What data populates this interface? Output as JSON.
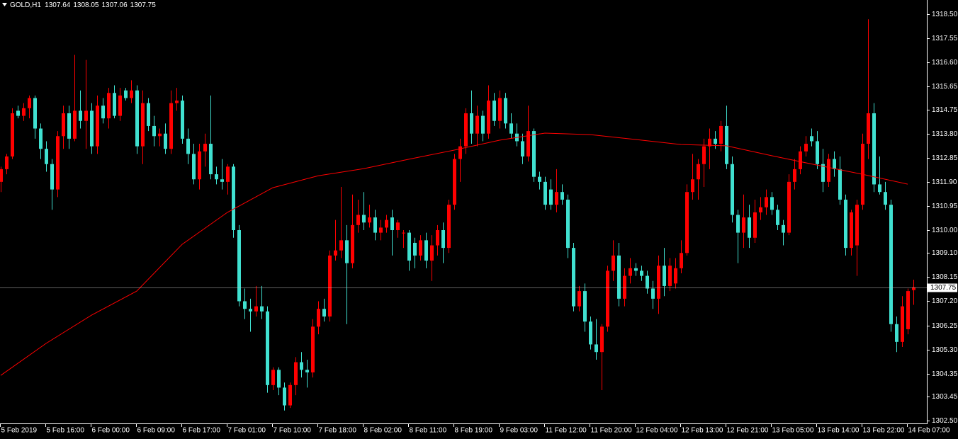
{
  "chart_data": {
    "type": "candlestick",
    "title": "GOLD,H1",
    "header_values": [
      1307.64,
      1308.05,
      1307.06,
      1307.75
    ],
    "up_color": "#ff0000",
    "down_color": "#40e0d0",
    "ylim": [
      1302.39,
      1319.06
    ],
    "yticks": [
      {
        "value": 1318.5,
        "label": "1318.50"
      },
      {
        "value": 1317.55,
        "label": "1317.55"
      },
      {
        "value": 1316.6,
        "label": "1316.60"
      },
      {
        "value": 1315.65,
        "label": "1315.65"
      },
      {
        "value": 1314.75,
        "label": "1314.75"
      },
      {
        "value": 1313.8,
        "label": "1313.80"
      },
      {
        "value": 1312.85,
        "label": "1312.85"
      },
      {
        "value": 1311.9,
        "label": "1311.90"
      },
      {
        "value": 1310.95,
        "label": "1310.95"
      },
      {
        "value": 1310,
        "label": "1310.00"
      },
      {
        "value": 1309.1,
        "label": "1309.10"
      },
      {
        "value": 1308.15,
        "label": "1308.15"
      },
      {
        "value": 1307.2,
        "label": "1307.20"
      },
      {
        "value": 1306.25,
        "label": "1306.25"
      },
      {
        "value": 1305.3,
        "label": "1305.30"
      },
      {
        "value": 1304.35,
        "label": "1304.35"
      },
      {
        "value": 1303.45,
        "label": "1303.45"
      },
      {
        "value": 1302.5,
        "label": "1302.50"
      }
    ],
    "last_price": 1307.75,
    "categories": [
      "5 Feb 2019",
      null,
      null,
      null,
      null,
      null,
      null,
      null,
      "5 Feb 16:00",
      null,
      null,
      null,
      null,
      null,
      null,
      null,
      "6 Feb 00:00",
      null,
      null,
      null,
      null,
      null,
      null,
      null,
      "6 Feb 09:00",
      null,
      null,
      null,
      null,
      null,
      null,
      null,
      "6 Feb 17:00",
      null,
      null,
      null,
      null,
      null,
      null,
      null,
      "7 Feb 01:00",
      null,
      null,
      null,
      null,
      null,
      null,
      null,
      "7 Feb 10:00",
      null,
      null,
      null,
      null,
      null,
      null,
      null,
      "7 Feb 18:00",
      null,
      null,
      null,
      null,
      null,
      null,
      null,
      "8 Feb 02:00",
      null,
      null,
      null,
      null,
      null,
      null,
      null,
      "8 Feb 11:00",
      null,
      null,
      null,
      null,
      null,
      null,
      null,
      "8 Feb 19:00",
      null,
      null,
      null,
      null,
      null,
      null,
      null,
      "9 Feb 03:00",
      null,
      null,
      null,
      null,
      null,
      null,
      null,
      "11 Feb 12:00",
      null,
      null,
      null,
      null,
      null,
      null,
      null,
      "11 Feb 20:00",
      null,
      null,
      null,
      null,
      null,
      null,
      null,
      "12 Feb 04:00",
      null,
      null,
      null,
      null,
      null,
      null,
      null,
      "12 Feb 13:00",
      null,
      null,
      null,
      null,
      null,
      null,
      null,
      "12 Feb 21:00",
      null,
      null,
      null,
      null,
      null,
      null,
      null,
      "13 Feb 05:00",
      null,
      null,
      null,
      null,
      null,
      null,
      null,
      "13 Feb 14:00",
      null,
      null,
      null,
      null,
      null,
      null,
      null,
      "13 Feb 22:00",
      null,
      null,
      null,
      null,
      null,
      null,
      null,
      "14 Feb 07:00",
      null
    ],
    "candles": [
      [
        1311.9,
        1312.5,
        1311.5,
        1312.4
      ],
      [
        1312.4,
        1313.0,
        1312.2,
        1312.9
      ],
      [
        1312.9,
        1314.8,
        1312.8,
        1314.6
      ],
      [
        1314.7,
        1314.9,
        1314.4,
        1314.5
      ],
      [
        1314.5,
        1315.0,
        1314.3,
        1314.8
      ],
      [
        1314.8,
        1315.3,
        1314.4,
        1315.2
      ],
      [
        1315.2,
        1315.3,
        1313.6,
        1314.0
      ],
      [
        1314.0,
        1314.2,
        1312.8,
        1313.2
      ],
      [
        1313.2,
        1313.5,
        1312.3,
        1312.6
      ],
      [
        1312.6,
        1312.8,
        1310.8,
        1311.6
      ],
      [
        1311.6,
        1313.9,
        1311.3,
        1313.7
      ],
      [
        1313.7,
        1314.9,
        1313.2,
        1314.6
      ],
      [
        1314.6,
        1314.9,
        1313.2,
        1313.6
      ],
      [
        1313.6,
        1316.9,
        1313.5,
        1314.7
      ],
      [
        1314.7,
        1315.5,
        1314.0,
        1314.3
      ],
      [
        1314.3,
        1316.7,
        1313.2,
        1314.7
      ],
      [
        1314.7,
        1315.0,
        1313.0,
        1313.3
      ],
      [
        1313.3,
        1315.3,
        1313.0,
        1314.9
      ],
      [
        1314.9,
        1315.2,
        1314.2,
        1314.4
      ],
      [
        1314.4,
        1315.6,
        1314.0,
        1315.4
      ],
      [
        1315.4,
        1315.7,
        1314.4,
        1314.5
      ],
      [
        1314.5,
        1315.6,
        1314.3,
        1315.3
      ],
      [
        1315.5,
        1315.6,
        1315.1,
        1315.2
      ],
      [
        1315.2,
        1315.9,
        1315.0,
        1315.5
      ],
      [
        1315.5,
        1315.7,
        1313.0,
        1313.3
      ],
      [
        1313.3,
        1315.5,
        1312.6,
        1315.0
      ],
      [
        1315.0,
        1315.2,
        1313.9,
        1314.1
      ],
      [
        1314.1,
        1314.5,
        1313.3,
        1313.7
      ],
      [
        1313.7,
        1314.0,
        1313.3,
        1313.8
      ],
      [
        1313.8,
        1314.2,
        1313.0,
        1313.2
      ],
      [
        1313.2,
        1315.5,
        1313.0,
        1315.0
      ],
      [
        1315.0,
        1315.6,
        1314.7,
        1315.1
      ],
      [
        1315.1,
        1315.3,
        1313.4,
        1313.6
      ],
      [
        1313.6,
        1314.0,
        1312.6,
        1313.0
      ],
      [
        1313.0,
        1313.4,
        1311.8,
        1312.0
      ],
      [
        1312.0,
        1313.4,
        1311.6,
        1313.1
      ],
      [
        1313.1,
        1313.8,
        1312.5,
        1313.4
      ],
      [
        1313.4,
        1315.3,
        1312.0,
        1312.2
      ],
      [
        1312.2,
        1312.5,
        1311.8,
        1312.0
      ],
      [
        1312.0,
        1312.8,
        1311.6,
        1311.9
      ],
      [
        1311.9,
        1312.6,
        1311.4,
        1312.5
      ],
      [
        1312.5,
        1312.6,
        1309.7,
        1310.0
      ],
      [
        1310.0,
        1310.2,
        1307.0,
        1307.2
      ],
      [
        1307.2,
        1307.7,
        1306.5,
        1306.9
      ],
      [
        1306.9,
        1307.3,
        1306.0,
        1306.8
      ],
      [
        1306.8,
        1307.8,
        1306.6,
        1307.0
      ],
      [
        1307.0,
        1307.8,
        1306.5,
        1306.8
      ],
      [
        1306.8,
        1307.0,
        1303.6,
        1303.9
      ],
      [
        1303.9,
        1304.6,
        1303.7,
        1304.5
      ],
      [
        1304.5,
        1304.6,
        1303.5,
        1303.8
      ],
      [
        1303.8,
        1304.0,
        1302.9,
        1303.1
      ],
      [
        1303.1,
        1304.0,
        1303.0,
        1303.9
      ],
      [
        1303.9,
        1305.0,
        1303.5,
        1304.8
      ],
      [
        1304.8,
        1305.2,
        1304.2,
        1304.5
      ],
      [
        1304.5,
        1304.9,
        1303.8,
        1304.4
      ],
      [
        1304.4,
        1306.5,
        1304.2,
        1306.2
      ],
      [
        1306.2,
        1307.2,
        1305.9,
        1306.9
      ],
      [
        1306.9,
        1307.3,
        1306.4,
        1306.6
      ],
      [
        1306.6,
        1309.2,
        1306.4,
        1309.0
      ],
      [
        1309.0,
        1310.4,
        1308.8,
        1309.2
      ],
      [
        1309.2,
        1311.7,
        1308.9,
        1309.6
      ],
      [
        1309.6,
        1310.2,
        1306.3,
        1308.7
      ],
      [
        1308.7,
        1311.4,
        1308.5,
        1310.2
      ],
      [
        1310.2,
        1311.2,
        1309.9,
        1310.6
      ],
      [
        1310.6,
        1311.5,
        1310.0,
        1310.3
      ],
      [
        1310.3,
        1311.0,
        1310.1,
        1310.5
      ],
      [
        1310.5,
        1310.8,
        1309.6,
        1309.9
      ],
      [
        1309.9,
        1310.4,
        1309.6,
        1310.1
      ],
      [
        1310.1,
        1310.6,
        1309.9,
        1310.4
      ],
      [
        1310.5,
        1310.8,
        1309.0,
        1310.0
      ],
      [
        1310.0,
        1310.4,
        1309.7,
        1310.3
      ],
      [
        1309.9,
        1310.0,
        1309.3,
        1309.9
      ],
      [
        1309.9,
        1310.0,
        1308.4,
        1308.8
      ],
      [
        1309.5,
        1309.7,
        1308.5,
        1309.0
      ],
      [
        1309.0,
        1309.8,
        1308.8,
        1309.6
      ],
      [
        1309.6,
        1309.9,
        1308.5,
        1308.8
      ],
      [
        1308.8,
        1309.8,
        1308.0,
        1309.4
      ],
      [
        1309.4,
        1310.2,
        1309.0,
        1310.0
      ],
      [
        1310.0,
        1310.3,
        1308.7,
        1309.3
      ],
      [
        1309.3,
        1311.2,
        1309.1,
        1311.0
      ],
      [
        1311.0,
        1313.0,
        1310.8,
        1312.8
      ],
      [
        1312.8,
        1313.6,
        1311.9,
        1313.3
      ],
      [
        1313.3,
        1314.8,
        1313.0,
        1314.6
      ],
      [
        1314.6,
        1315.5,
        1313.4,
        1313.8
      ],
      [
        1313.8,
        1314.9,
        1313.3,
        1314.5
      ],
      [
        1314.5,
        1314.7,
        1313.5,
        1313.8
      ],
      [
        1313.8,
        1315.7,
        1313.6,
        1315.1
      ],
      [
        1315.1,
        1315.4,
        1314.1,
        1314.3
      ],
      [
        1314.3,
        1315.5,
        1314.0,
        1315.2
      ],
      [
        1315.2,
        1315.4,
        1314.0,
        1314.2
      ],
      [
        1314.2,
        1314.6,
        1313.6,
        1313.8
      ],
      [
        1313.8,
        1314.2,
        1313.3,
        1313.5
      ],
      [
        1313.5,
        1313.8,
        1312.6,
        1312.9
      ],
      [
        1312.9,
        1314.9,
        1312.7,
        1313.9
      ],
      [
        1313.9,
        1314.0,
        1311.9,
        1312.1
      ],
      [
        1312.1,
        1312.3,
        1311.6,
        1311.9
      ],
      [
        1311.9,
        1312.1,
        1310.8,
        1311.0
      ],
      [
        1311.6,
        1312.0,
        1310.8,
        1311.0
      ],
      [
        1311.0,
        1312.4,
        1310.7,
        1311.5
      ],
      [
        1311.5,
        1311.8,
        1311.0,
        1311.2
      ],
      [
        1311.2,
        1311.4,
        1308.9,
        1309.3
      ],
      [
        1309.3,
        1309.5,
        1306.8,
        1307.0
      ],
      [
        1307.0,
        1307.8,
        1306.8,
        1307.6
      ],
      [
        1307.6,
        1307.9,
        1306.0,
        1306.4
      ],
      [
        1306.4,
        1306.6,
        1305.3,
        1305.5
      ],
      [
        1305.5,
        1306.5,
        1304.9,
        1305.2
      ],
      [
        1305.2,
        1306.3,
        1303.7,
        1306.2
      ],
      [
        1306.2,
        1308.6,
        1306.0,
        1308.4
      ],
      [
        1308.4,
        1309.6,
        1308.0,
        1309.0
      ],
      [
        1309.0,
        1309.5,
        1307.0,
        1307.3
      ],
      [
        1307.3,
        1308.5,
        1307.0,
        1308.2
      ],
      [
        1308.2,
        1308.9,
        1307.9,
        1308.5
      ],
      [
        1308.5,
        1308.7,
        1308.2,
        1308.4
      ],
      [
        1308.4,
        1308.6,
        1308.0,
        1308.2
      ],
      [
        1308.2,
        1308.4,
        1307.5,
        1307.7
      ],
      [
        1307.7,
        1308.0,
        1306.9,
        1307.3
      ],
      [
        1307.3,
        1309.0,
        1306.7,
        1308.6
      ],
      [
        1308.6,
        1309.3,
        1307.4,
        1307.8
      ],
      [
        1307.8,
        1308.9,
        1307.6,
        1308.6
      ],
      [
        1307.9,
        1308.9,
        1307.7,
        1308.5
      ],
      [
        1308.5,
        1309.6,
        1308.3,
        1309.1
      ],
      [
        1309.1,
        1311.8,
        1309.0,
        1311.5
      ],
      [
        1311.5,
        1313.0,
        1311.2,
        1312.0
      ],
      [
        1312.0,
        1312.8,
        1311.2,
        1312.6
      ],
      [
        1312.6,
        1313.6,
        1311.7,
        1313.3
      ],
      [
        1313.3,
        1314.0,
        1312.4,
        1313.6
      ],
      [
        1313.6,
        1313.9,
        1313.2,
        1313.4
      ],
      [
        1313.4,
        1314.3,
        1313.1,
        1314.1
      ],
      [
        1314.1,
        1314.9,
        1312.4,
        1312.6
      ],
      [
        1312.6,
        1312.9,
        1310.3,
        1310.6
      ],
      [
        1310.6,
        1310.8,
        1308.7,
        1309.9
      ],
      [
        1309.9,
        1311.4,
        1309.3,
        1310.5
      ],
      [
        1310.5,
        1311.0,
        1309.3,
        1309.7
      ],
      [
        1309.7,
        1311.2,
        1309.5,
        1310.7
      ],
      [
        1310.7,
        1311.3,
        1310.4,
        1310.9
      ],
      [
        1310.9,
        1311.6,
        1310.6,
        1311.3
      ],
      [
        1311.3,
        1311.5,
        1310.6,
        1310.8
      ],
      [
        1310.8,
        1311.0,
        1310.0,
        1310.2
      ],
      [
        1310.2,
        1310.4,
        1309.4,
        1309.9
      ],
      [
        1309.9,
        1312.2,
        1309.8,
        1311.9
      ],
      [
        1311.9,
        1312.8,
        1311.6,
        1312.4
      ],
      [
        1312.4,
        1313.3,
        1312.2,
        1313.1
      ],
      [
        1313.1,
        1313.7,
        1312.9,
        1313.4
      ],
      [
        1313.7,
        1314.0,
        1313.3,
        1313.5
      ],
      [
        1313.5,
        1313.9,
        1312.4,
        1312.6
      ],
      [
        1312.6,
        1313.2,
        1311.5,
        1311.9
      ],
      [
        1311.9,
        1313.0,
        1311.7,
        1312.8
      ],
      [
        1312.8,
        1313.1,
        1312.1,
        1312.4
      ],
      [
        1312.4,
        1312.9,
        1311.0,
        1311.2
      ],
      [
        1311.2,
        1311.4,
        1309.0,
        1309.3
      ],
      [
        1309.3,
        1310.8,
        1309.0,
        1310.7
      ],
      [
        1309.4,
        1311.2,
        1308.2,
        1311.0
      ],
      [
        1311.0,
        1313.8,
        1310.8,
        1313.4
      ],
      [
        1313.4,
        1318.3,
        1312.8,
        1314.6
      ],
      [
        1314.6,
        1315.0,
        1311.5,
        1311.8
      ],
      [
        1311.8,
        1312.9,
        1311.4,
        1311.5
      ],
      [
        1311.5,
        1311.9,
        1310.8,
        1311.0
      ],
      [
        1311.0,
        1311.2,
        1306.0,
        1306.3
      ],
      [
        1306.3,
        1306.6,
        1305.2,
        1305.6
      ],
      [
        1305.6,
        1307.4,
        1305.4,
        1307.0
      ],
      [
        1306.1,
        1307.7,
        1305.9,
        1307.6
      ],
      [
        1307.64,
        1308.05,
        1307.06,
        1307.75
      ]
    ],
    "ma": {
      "color": "#ff0000",
      "x": [
        0,
        8,
        16,
        24,
        32,
        40,
        48,
        56,
        64,
        72,
        80,
        88,
        96,
        104,
        112,
        120,
        128,
        136,
        144,
        152,
        160
      ],
      "values": [
        1304.28,
        1305.54,
        1306.65,
        1307.6,
        1309.44,
        1310.7,
        1311.67,
        1312.14,
        1312.42,
        1312.79,
        1313.15,
        1313.54,
        1313.82,
        1313.76,
        1313.57,
        1313.37,
        1313.32,
        1312.93,
        1312.56,
        1312.2,
        1311.81
      ]
    }
  }
}
